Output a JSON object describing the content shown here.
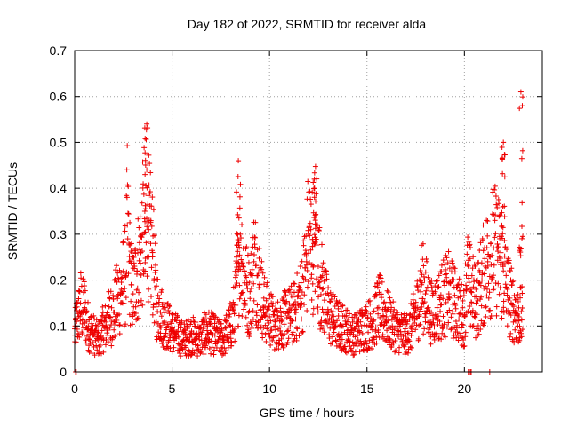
{
  "chart_data": {
    "type": "scatter",
    "title": "Day 182 of 2022, SRMTID for receiver alda",
    "xlabel": "GPS time / hours",
    "ylabel": "SRMTID / TECUs",
    "xlim": [
      0,
      24
    ],
    "ylim": [
      0,
      0.7
    ],
    "xticks": [
      0,
      5,
      10,
      15,
      20
    ],
    "xtick_labels": [
      "0",
      "5",
      "10",
      "15",
      "20"
    ],
    "yticks": [
      0,
      0.1,
      0.2,
      0.3,
      0.4,
      0.5,
      0.6,
      0.7
    ],
    "ytick_labels": [
      "0",
      "0.1",
      "0.2",
      "0.3",
      "0.4",
      "0.5",
      "0.6",
      "0.7"
    ],
    "grid": true,
    "marker": "+",
    "color": "#ee0000",
    "series": [
      {
        "name": "SRMTID",
        "x": [
          0.0,
          0.1,
          0.2,
          0.3,
          0.4,
          0.5,
          0.6,
          0.7,
          0.8,
          1.0,
          1.2,
          1.4,
          1.6,
          1.8,
          2.0,
          2.2,
          2.4,
          2.6,
          2.7,
          2.8,
          2.9,
          3.0,
          3.2,
          3.4,
          3.5,
          3.6,
          3.7,
          3.8,
          3.9,
          4.0,
          4.2,
          4.4,
          4.6,
          4.8,
          5.0,
          5.3,
          5.6,
          6.0,
          6.4,
          6.8,
          7.2,
          7.6,
          8.0,
          8.2,
          8.4,
          8.5,
          8.7,
          9.0,
          9.2,
          9.4,
          9.5,
          9.7,
          10.0,
          10.3,
          10.6,
          11.0,
          11.3,
          11.6,
          11.9,
          12.0,
          12.2,
          12.4,
          12.5,
          12.7,
          13.0,
          13.3,
          13.6,
          14.0,
          14.3,
          14.6,
          15.0,
          15.3,
          15.6,
          16.0,
          16.3,
          16.6,
          17.0,
          17.3,
          17.6,
          17.8,
          18.0,
          18.3,
          18.6,
          18.9,
          19.2,
          19.5,
          19.8,
          20.0,
          20.1,
          20.3,
          20.6,
          20.9,
          21.2,
          21.5,
          21.8,
          22.0,
          22.2,
          22.4,
          22.6,
          22.8
        ],
        "y": [
          0.08,
          0.11,
          0.12,
          0.15,
          0.13,
          0.14,
          0.11,
          0.1,
          0.09,
          0.08,
          0.07,
          0.09,
          0.1,
          0.12,
          0.13,
          0.16,
          0.18,
          0.21,
          0.32,
          0.24,
          0.19,
          0.17,
          0.22,
          0.26,
          0.3,
          0.35,
          0.44,
          0.31,
          0.28,
          0.26,
          0.15,
          0.13,
          0.11,
          0.1,
          0.09,
          0.08,
          0.07,
          0.08,
          0.07,
          0.09,
          0.08,
          0.07,
          0.1,
          0.13,
          0.22,
          0.3,
          0.2,
          0.16,
          0.24,
          0.21,
          0.19,
          0.14,
          0.12,
          0.1,
          0.11,
          0.12,
          0.13,
          0.16,
          0.24,
          0.3,
          0.27,
          0.32,
          0.23,
          0.18,
          0.13,
          0.11,
          0.1,
          0.09,
          0.08,
          0.09,
          0.1,
          0.11,
          0.14,
          0.12,
          0.1,
          0.09,
          0.08,
          0.1,
          0.14,
          0.19,
          0.17,
          0.13,
          0.14,
          0.16,
          0.17,
          0.15,
          0.13,
          0.12,
          0.21,
          0.18,
          0.15,
          0.2,
          0.24,
          0.27,
          0.25,
          0.22,
          0.18,
          0.15,
          0.13,
          0.12
        ]
      }
    ],
    "notable_peaks": [
      {
        "x": 3.7,
        "y": 0.54
      },
      {
        "x": 8.4,
        "y": 0.46
      },
      {
        "x": 12.3,
        "y": 0.42
      },
      {
        "x": 22.0,
        "y": 0.5
      },
      {
        "x": 22.9,
        "y": 0.61
      }
    ]
  }
}
